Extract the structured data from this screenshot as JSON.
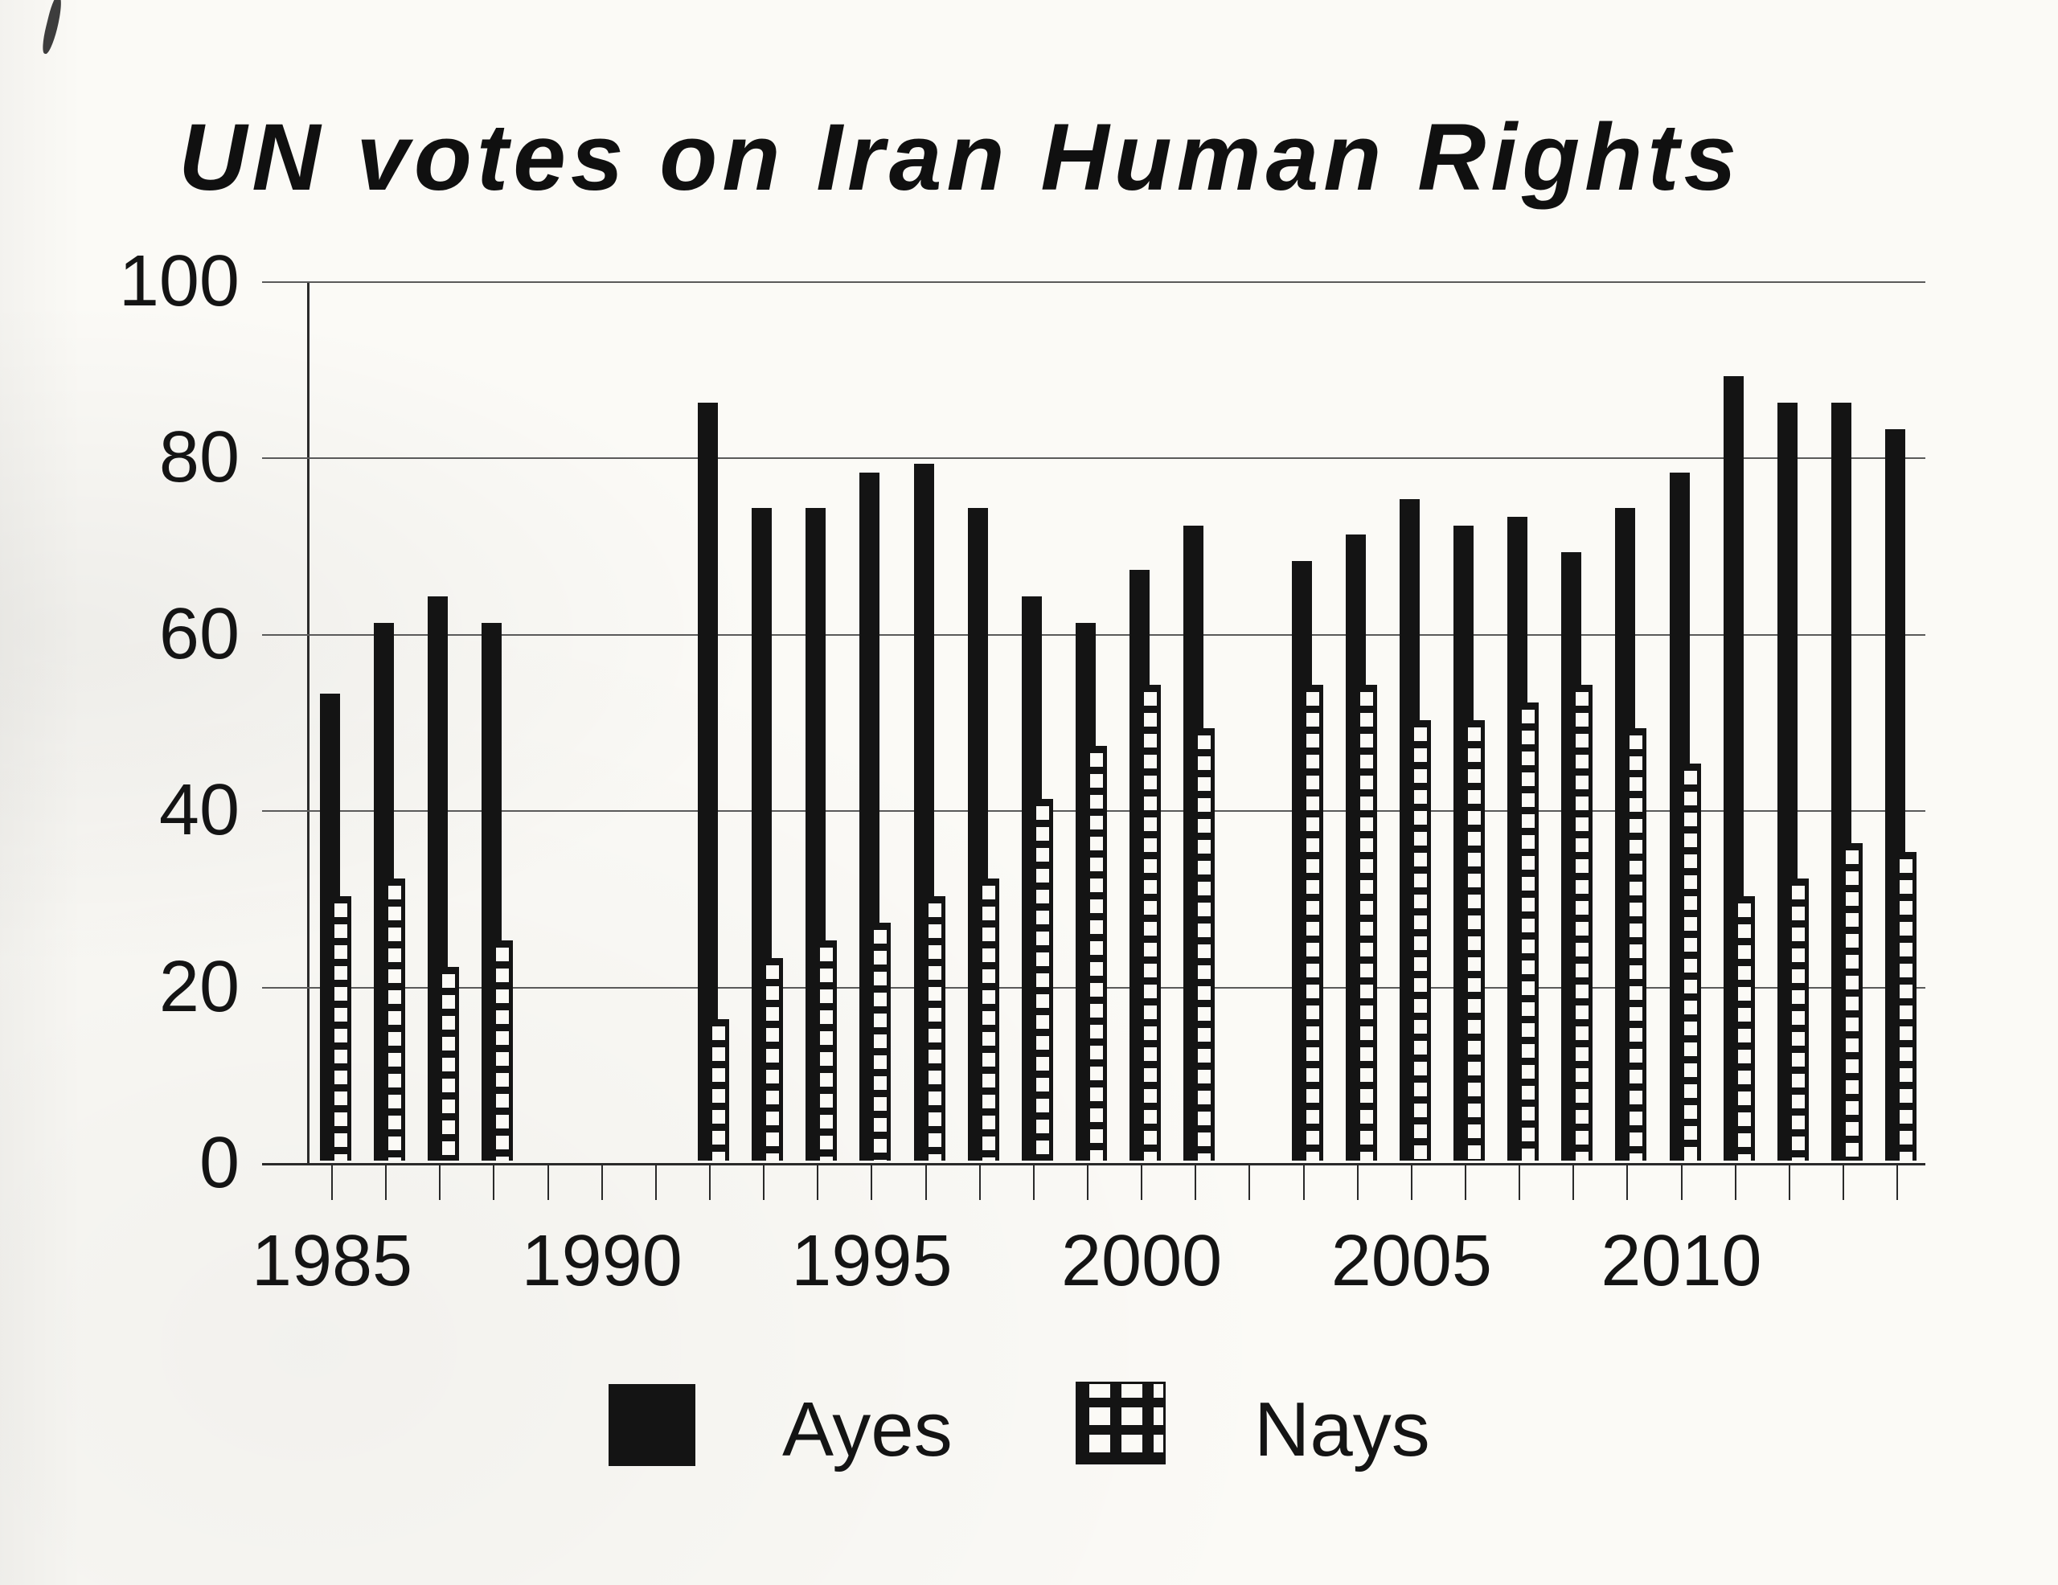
{
  "title": "UN votes on Iran Human Rights",
  "legend": {
    "ayes_label": "Ayes",
    "nays_label": "Nays"
  },
  "colors": {
    "ink": "#141414",
    "paper": "#fbfaf6",
    "grid": "#5a5a5a"
  },
  "y_axis": {
    "tick_labels": [
      "0",
      "20",
      "40",
      "60",
      "80",
      "100"
    ],
    "min": 0,
    "max": 100
  },
  "x_axis": {
    "shown_labels": [
      "1985",
      "1990",
      "1995",
      "2000",
      "2005",
      "2010"
    ],
    "label_every": 5,
    "start_year": 1985,
    "end_year": 2014
  },
  "chart_data": {
    "type": "bar",
    "title": "UN votes on Iran Human Rights",
    "categories": [
      "1985",
      "1986",
      "1987",
      "1988",
      "1989",
      "1990",
      "1991",
      "1992",
      "1993",
      "1994",
      "1995",
      "1996",
      "1997",
      "1998",
      "1999",
      "2000",
      "2001",
      "2002",
      "2003",
      "2004",
      "2005",
      "2006",
      "2007",
      "2008",
      "2009",
      "2010",
      "2011",
      "2012",
      "2013",
      "2014"
    ],
    "series": [
      {
        "name": "Ayes",
        "values": [
          53,
          61,
          64,
          61,
          null,
          null,
          null,
          86,
          74,
          74,
          78,
          79,
          74,
          64,
          61,
          67,
          72,
          null,
          68,
          71,
          75,
          72,
          73,
          69,
          74,
          78,
          89,
          86,
          86,
          83
        ]
      },
      {
        "name": "Nays",
        "values": [
          30,
          32,
          22,
          25,
          null,
          null,
          null,
          16,
          23,
          25,
          27,
          30,
          32,
          41,
          47,
          54,
          49,
          null,
          54,
          54,
          50,
          50,
          52,
          54,
          49,
          45,
          30,
          32,
          36,
          35
        ]
      }
    ],
    "ylim": [
      0,
      100
    ],
    "grid": true,
    "legend_position": "bottom"
  }
}
